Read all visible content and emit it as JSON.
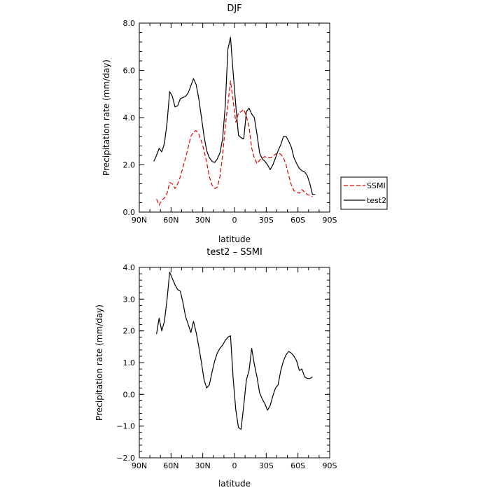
{
  "chart_data": [
    {
      "type": "line",
      "title": "DJF",
      "xlabel": "latitude",
      "ylabel": "Precipitation rate (mm/day)",
      "xlim": [
        90,
        -90
      ],
      "ylim": [
        0,
        8
      ],
      "xticks": [
        90,
        60,
        30,
        0,
        -30,
        -60,
        -90
      ],
      "xticklabels": [
        "90N",
        "60N",
        "30N",
        "0",
        "30S",
        "60S",
        "90S"
      ],
      "yticks": [
        0,
        2,
        4,
        6,
        8
      ],
      "yticklabels": [
        "0.0",
        "2.0",
        "4.0",
        "6.0",
        "8.0"
      ],
      "legend": "right-outside",
      "series": [
        {
          "name": "SSMI",
          "color": "#e00000",
          "dash": "dashed",
          "x": [
            73.75,
            71.25,
            68.75,
            66.25,
            63.75,
            61.25,
            58.75,
            56.25,
            53.75,
            51.25,
            48.75,
            46.25,
            43.75,
            41.25,
            38.75,
            36.25,
            33.75,
            31.25,
            28.75,
            26.25,
            23.75,
            21.25,
            18.75,
            16.25,
            13.75,
            11.25,
            8.75,
            6.25,
            3.75,
            1.25,
            -1.25,
            -3.75,
            -6.25,
            -8.75,
            -11.25,
            -13.75,
            -16.25,
            -18.75,
            -21.25,
            -23.75,
            -26.25,
            -28.75,
            -31.25,
            -33.75,
            -36.25,
            -38.75,
            -41.25,
            -43.75,
            -46.25,
            -48.75,
            -51.25,
            -53.75,
            -56.25,
            -58.75,
            -61.25,
            -63.75,
            -66.25,
            -68.75,
            -71.25,
            -73.75
          ],
          "values": [
            0.55,
            0.3,
            0.5,
            0.6,
            0.8,
            1.25,
            1.2,
            1.0,
            1.2,
            1.5,
            1.9,
            2.3,
            2.75,
            3.2,
            3.4,
            3.45,
            3.3,
            3.0,
            2.6,
            2.1,
            1.5,
            1.15,
            1.0,
            1.05,
            1.5,
            2.4,
            3.6,
            4.6,
            5.55,
            4.7,
            3.8,
            4.2,
            4.25,
            4.35,
            4.05,
            3.6,
            2.7,
            2.3,
            2.05,
            2.2,
            2.3,
            2.35,
            2.3,
            2.3,
            2.35,
            2.45,
            2.5,
            2.45,
            2.3,
            2.0,
            1.55,
            1.15,
            0.9,
            0.85,
            0.8,
            0.95,
            0.85,
            0.75,
            0.7,
            0.65
          ]
        },
        {
          "name": "test2",
          "color": "#000000",
          "dash": "solid",
          "x": [
            76.25,
            73.75,
            71.25,
            68.75,
            66.25,
            63.75,
            61.25,
            58.75,
            56.25,
            53.75,
            51.25,
            48.75,
            46.25,
            43.75,
            41.25,
            38.75,
            36.25,
            33.75,
            31.25,
            28.75,
            26.25,
            23.75,
            21.25,
            18.75,
            16.25,
            13.75,
            11.25,
            8.75,
            6.25,
            3.75,
            1.25,
            -1.25,
            -3.75,
            -6.25,
            -8.75,
            -11.25,
            -13.75,
            -16.25,
            -18.75,
            -21.25,
            -23.75,
            -26.25,
            -28.75,
            -31.25,
            -33.75,
            -36.25,
            -38.75,
            -41.25,
            -43.75,
            -46.25,
            -48.75,
            -51.25,
            -53.75,
            -56.25,
            -58.75,
            -61.25,
            -63.75,
            -66.25,
            -68.75,
            -71.25,
            -73.75,
            -76.25
          ],
          "values": [
            2.15,
            2.4,
            2.7,
            2.55,
            2.9,
            3.8,
            5.1,
            4.9,
            4.45,
            4.5,
            4.8,
            4.85,
            4.9,
            5.05,
            5.35,
            5.65,
            5.4,
            4.8,
            4.0,
            3.2,
            2.6,
            2.3,
            2.15,
            2.1,
            2.25,
            2.5,
            3.1,
            4.5,
            6.9,
            7.4,
            5.9,
            4.5,
            3.25,
            3.15,
            3.1,
            4.25,
            4.4,
            4.15,
            4.0,
            3.3,
            2.5,
            2.25,
            2.15,
            2.0,
            1.8,
            2.0,
            2.3,
            2.6,
            2.85,
            3.2,
            3.2,
            3.0,
            2.75,
            2.3,
            2.05,
            1.85,
            1.75,
            1.7,
            1.55,
            1.2,
            0.75,
            0.75
          ]
        }
      ]
    },
    {
      "type": "line",
      "title": "test2 – SSMI",
      "xlabel": "latitude",
      "ylabel": "Precipitation rate (mm/day)",
      "xlim": [
        90,
        -90
      ],
      "ylim": [
        -2,
        4
      ],
      "xticks": [
        90,
        60,
        30,
        0,
        -30,
        -60,
        -90
      ],
      "xticklabels": [
        "90N",
        "60N",
        "30N",
        "0",
        "30S",
        "60S",
        "90S"
      ],
      "yticks": [
        -2,
        -1,
        0,
        1,
        2,
        3,
        4
      ],
      "yticklabels": [
        "−2.0",
        "−1.0",
        "0.0",
        "1.0",
        "2.0",
        "3.0",
        "4.0"
      ],
      "series": [
        {
          "color": "#000000",
          "dash": "solid",
          "x": [
            73.75,
            71.25,
            68.75,
            66.25,
            63.75,
            61.25,
            58.75,
            56.25,
            53.75,
            51.25,
            48.75,
            46.25,
            43.75,
            41.25,
            38.75,
            36.25,
            33.75,
            31.25,
            28.75,
            26.25,
            23.75,
            21.25,
            18.75,
            16.25,
            13.75,
            11.25,
            8.75,
            6.25,
            3.75,
            1.25,
            -1.25,
            -3.75,
            -6.25,
            -8.75,
            -11.25,
            -13.75,
            -16.25,
            -18.75,
            -21.25,
            -23.75,
            -26.25,
            -28.75,
            -31.25,
            -33.75,
            -36.25,
            -38.75,
            -41.25,
            -43.75,
            -46.25,
            -48.75,
            -51.25,
            -53.75,
            -56.25,
            -58.75,
            -61.25,
            -63.75,
            -66.25,
            -68.75,
            -71.25,
            -73.75
          ],
          "values": [
            1.9,
            2.4,
            2.0,
            2.3,
            3.0,
            3.85,
            3.65,
            3.45,
            3.3,
            3.25,
            2.9,
            2.45,
            2.2,
            1.95,
            2.3,
            1.95,
            1.5,
            1.0,
            0.45,
            0.2,
            0.3,
            0.7,
            1.05,
            1.3,
            1.45,
            1.55,
            1.7,
            1.8,
            1.85,
            0.5,
            -0.5,
            -1.05,
            -1.1,
            -0.35,
            0.45,
            0.75,
            1.45,
            0.95,
            0.55,
            0.05,
            -0.15,
            -0.3,
            -0.5,
            -0.35,
            -0.05,
            0.2,
            0.3,
            0.75,
            1.05,
            1.25,
            1.35,
            1.3,
            1.2,
            1.05,
            0.75,
            0.8,
            0.55,
            0.5,
            0.5,
            0.55
          ]
        }
      ]
    }
  ]
}
